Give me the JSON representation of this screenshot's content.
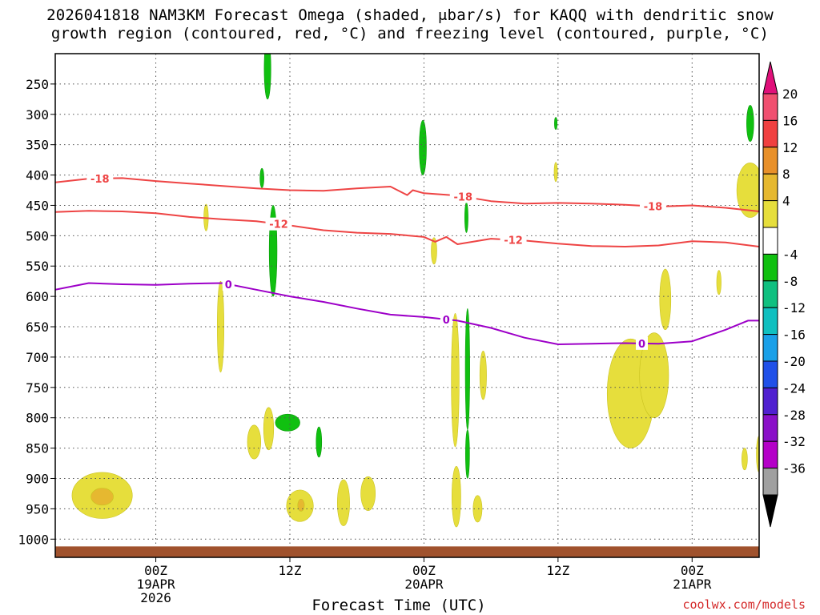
{
  "title_line1": "2026041818 NAM3KM Forecast Omega (shaded, μbar/s) for KAQQ with dendritic snow",
  "title_line2": "growth region (contoured, red, °C) and freezing level (contoured, purple, °C)",
  "x_title": "Forecast Time (UTC)",
  "credit": "coolwx.com/models",
  "colors": {
    "ground": "#a0522d",
    "dgz_line": "#ee4444",
    "frz_line": "#9d00c8",
    "grid": "#555555"
  },
  "chart_data": {
    "type": "heatmap",
    "variable": "Omega (μbar/s)",
    "x_unit": "hours since 2026041818",
    "x_range": [
      -3,
      60
    ],
    "y_unit": "pressure (hPa)",
    "y_range": [
      1030,
      200
    ],
    "y_ticks": [
      250,
      300,
      350,
      400,
      450,
      500,
      550,
      600,
      650,
      700,
      750,
      800,
      850,
      900,
      950,
      1000
    ],
    "x_ticks": [
      {
        "hour": 6,
        "lines": [
          "00Z",
          "19APR",
          "2026"
        ]
      },
      {
        "hour": 18,
        "lines": [
          "12Z"
        ]
      },
      {
        "hour": 30,
        "lines": [
          "00Z",
          "20APR"
        ]
      },
      {
        "hour": 42,
        "lines": [
          "12Z"
        ]
      },
      {
        "hour": 54,
        "lines": [
          "00Z",
          "21APR"
        ]
      }
    ],
    "colorbar": {
      "labels": [
        "20",
        "16",
        "12",
        "8",
        "4",
        "-4",
        "-8",
        "-12",
        "-16",
        "-20",
        "-24",
        "-28",
        "-32",
        "-36"
      ],
      "segments": [
        "#f05070",
        "#f04040",
        "#e8902a",
        "#e6b830",
        "#e6de3c",
        "#ffffff",
        "#10c010",
        "#10c080",
        "#10c0c0",
        "#1aa0e8",
        "#2050e8",
        "#5020d0",
        "#8a10c8",
        "#b400c8",
        "#a0a0a0"
      ],
      "top_arrow": "#e0107a",
      "bottom_arrow": "#000000"
    },
    "contours": [
      {
        "name": "dgz_-18",
        "label": "-18",
        "color": "#ee4444",
        "x": [
          -3,
          0,
          3,
          6,
          9,
          12,
          15,
          18,
          21,
          24,
          27,
          28.5,
          29,
          30,
          33,
          36,
          39,
          42,
          45,
          48,
          51,
          54,
          57,
          60
        ],
        "y": [
          412,
          406,
          405,
          410,
          414,
          418,
          422,
          425,
          426,
          422,
          419,
          433,
          425,
          430,
          434,
          443,
          447,
          446,
          447,
          449,
          452,
          450,
          454,
          460
        ],
        "label_x": [
          1,
          33.5,
          50.5
        ]
      },
      {
        "name": "dgz_-12",
        "label": "-12",
        "color": "#ee4444",
        "x": [
          -3,
          0,
          3,
          6,
          9,
          12,
          15,
          18,
          21,
          24,
          27,
          30,
          31,
          32,
          33,
          36,
          39,
          42,
          45,
          48,
          51,
          54,
          57,
          60
        ],
        "y": [
          461,
          459,
          460,
          463,
          469,
          473,
          476,
          483,
          491,
          495,
          497,
          502,
          510,
          502,
          514,
          505,
          508,
          513,
          517,
          518,
          516,
          509,
          511,
          518
        ],
        "label_x": [
          17,
          38
        ]
      },
      {
        "name": "freezing_level",
        "label": "0",
        "color": "#9d00c8",
        "x": [
          -3,
          0,
          3,
          6,
          9,
          12,
          15,
          18,
          21,
          24,
          27,
          30,
          33,
          36,
          39,
          42,
          45,
          48,
          51,
          54,
          57,
          59,
          60
        ],
        "y": [
          589,
          578,
          580,
          581,
          579,
          578,
          589,
          600,
          609,
          620,
          630,
          634,
          640,
          652,
          668,
          679,
          678,
          677,
          678,
          674,
          655,
          640,
          640
        ],
        "label_x": [
          12.5,
          32,
          49.5
        ]
      }
    ],
    "features": [
      {
        "v": -8,
        "x": 16,
        "y": 225,
        "rx": 0.3,
        "ry": 50
      },
      {
        "v": -8,
        "x": 15.5,
        "y": 405,
        "rx": 0.18,
        "ry": 16
      },
      {
        "v": -8,
        "x": 16.5,
        "y": 525,
        "rx": 0.35,
        "ry": 75
      },
      {
        "v": -8,
        "x": 29.9,
        "y": 355,
        "rx": 0.32,
        "ry": 45
      },
      {
        "v": -8,
        "x": 41.8,
        "y": 315,
        "rx": 0.12,
        "ry": 10
      },
      {
        "v": -8,
        "x": 59.2,
        "y": 315,
        "rx": 0.32,
        "ry": 30
      },
      {
        "v": -8,
        "x": 33.8,
        "y": 470,
        "rx": 0.15,
        "ry": 25
      },
      {
        "v": -8,
        "x": 17.8,
        "y": 808,
        "rx": 1.1,
        "ry": 14
      },
      {
        "v": -8,
        "x": 20.6,
        "y": 840,
        "rx": 0.25,
        "ry": 25
      },
      {
        "v": -8,
        "x": 33.9,
        "y": 720,
        "rx": 0.2,
        "ry": 100
      },
      {
        "v": -8,
        "x": 33.9,
        "y": 860,
        "rx": 0.18,
        "ry": 40
      },
      {
        "v": 4,
        "x": 59.2,
        "y": 425,
        "rx": 1.2,
        "ry": 45
      },
      {
        "v": 4,
        "x": 41.8,
        "y": 395,
        "rx": 0.15,
        "ry": 16
      },
      {
        "v": 4,
        "x": 10.5,
        "y": 470,
        "rx": 0.2,
        "ry": 22
      },
      {
        "v": 4,
        "x": 30.9,
        "y": 525,
        "rx": 0.25,
        "ry": 22
      },
      {
        "v": 4,
        "x": 11.8,
        "y": 650,
        "rx": 0.3,
        "ry": 75
      },
      {
        "v": 4,
        "x": 32.8,
        "y": 738,
        "rx": 0.35,
        "ry": 110
      },
      {
        "v": 4,
        "x": 32.9,
        "y": 930,
        "rx": 0.4,
        "ry": 50
      },
      {
        "v": 4,
        "x": 35.3,
        "y": 730,
        "rx": 0.3,
        "ry": 40
      },
      {
        "v": 4,
        "x": 34.8,
        "y": 950,
        "rx": 0.4,
        "ry": 22
      },
      {
        "v": 4,
        "x": 51.6,
        "y": 605,
        "rx": 0.5,
        "ry": 50
      },
      {
        "v": 4,
        "x": 56.4,
        "y": 577,
        "rx": 0.2,
        "ry": 20
      },
      {
        "v": 4,
        "x": 48.5,
        "y": 760,
        "rx": 2.1,
        "ry": 90
      },
      {
        "v": 4,
        "x": 50.6,
        "y": 730,
        "rx": 1.3,
        "ry": 70
      },
      {
        "v": 4,
        "x": 16.1,
        "y": 818,
        "rx": 0.45,
        "ry": 35
      },
      {
        "v": 4,
        "x": 14.8,
        "y": 840,
        "rx": 0.6,
        "ry": 28
      },
      {
        "v": 4,
        "x": 18.9,
        "y": 945,
        "rx": 1.2,
        "ry": 26
      },
      {
        "v": 4,
        "x": 22.8,
        "y": 940,
        "rx": 0.55,
        "ry": 38
      },
      {
        "v": 4,
        "x": 25.0,
        "y": 925,
        "rx": 0.65,
        "ry": 28
      },
      {
        "v": 4,
        "x": 1.2,
        "y": 928,
        "rx": 2.7,
        "ry": 38
      },
      {
        "v": 4,
        "x": 58.7,
        "y": 868,
        "rx": 0.25,
        "ry": 18
      },
      {
        "v": 4,
        "x": 60,
        "y": 860,
        "rx": 0.25,
        "ry": 30
      },
      {
        "v": 8,
        "x": 1.2,
        "y": 930,
        "rx": 1.0,
        "ry": 14
      },
      {
        "v": 8,
        "x": 19.0,
        "y": 944,
        "rx": 0.3,
        "ry": 10
      }
    ],
    "ground": {
      "from_pressure": 1012,
      "to_pressure": 1030
    }
  }
}
